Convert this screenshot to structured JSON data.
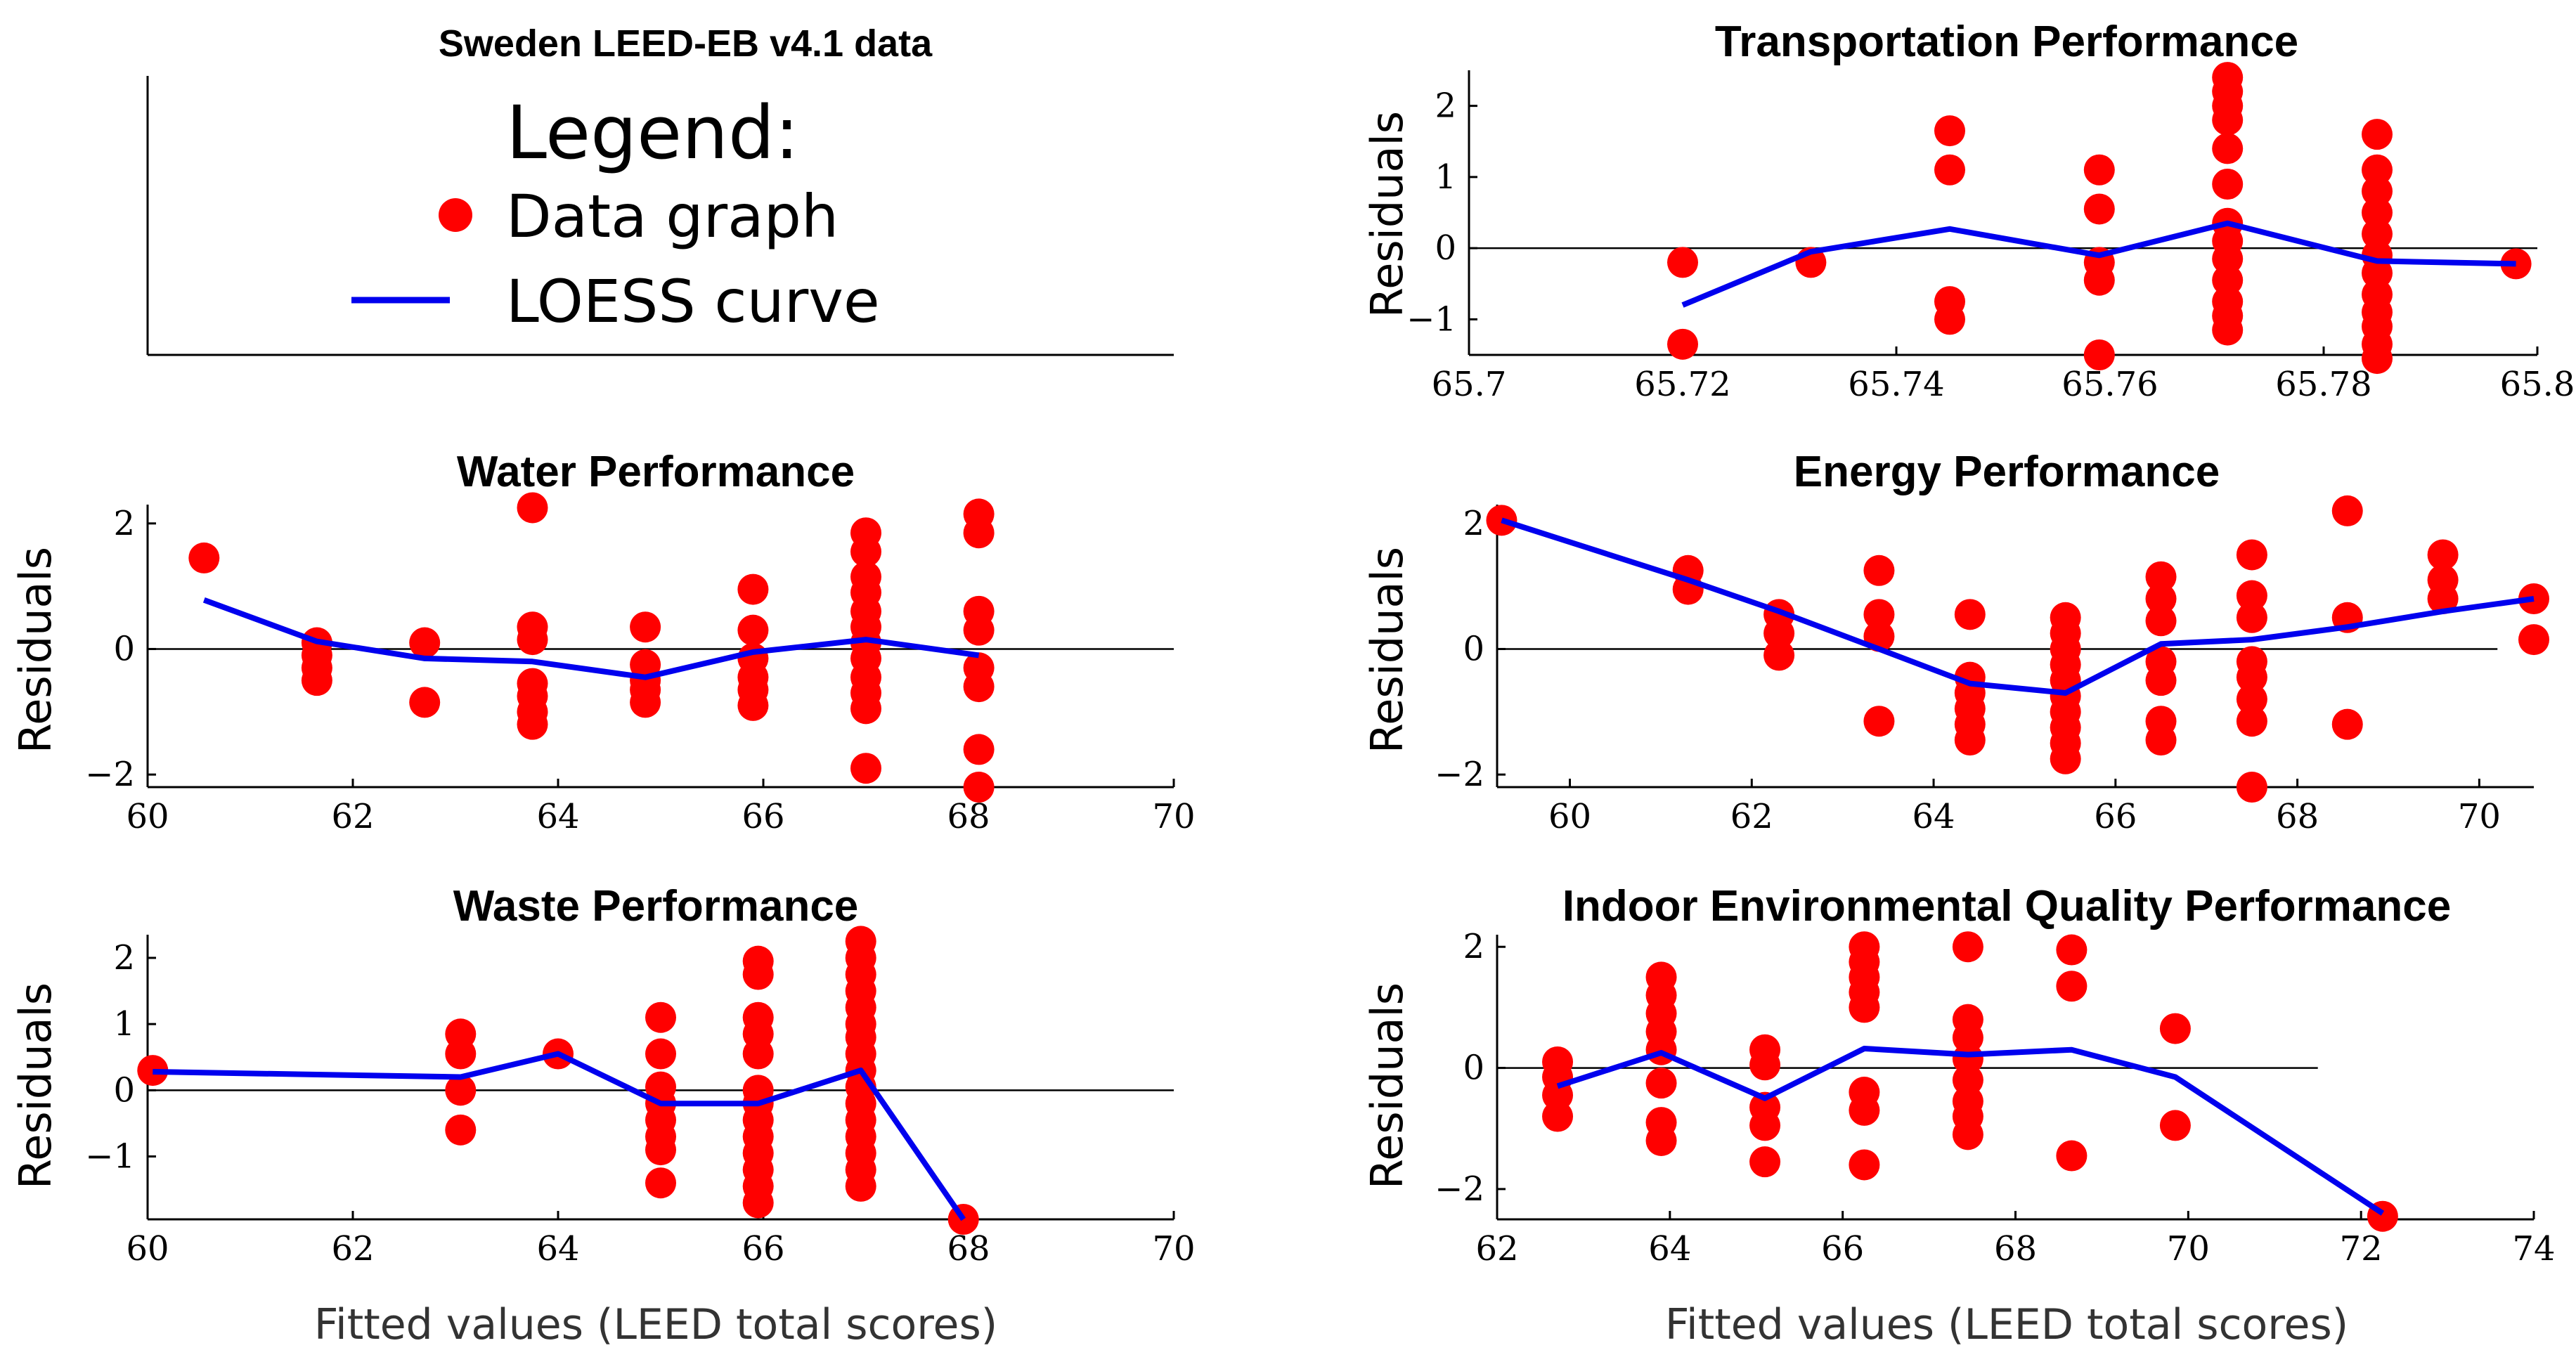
{
  "figure": {
    "x_axis_label": "Fitted values (LEED total scores)",
    "y_axis_label": "Residuals"
  },
  "legend": {
    "panel_title": "Sweden LEED-EB v4.1 data",
    "heading": "Legend:",
    "data_label": "Data graph",
    "curve_label": "LOESS curve"
  },
  "colors": {
    "points": "#ff0000",
    "curve": "#0000ee",
    "axis": "#000000",
    "zero_line": "#000000"
  },
  "chart_data": [
    {
      "id": "transport",
      "type": "scatter",
      "title": "Transportation Performance",
      "ylabel": "Residuals",
      "xlabel": "",
      "xlim": [
        65.7,
        65.8
      ],
      "ylim": [
        -1.5,
        2.5
      ],
      "xticks": [
        65.7,
        65.72,
        65.74,
        65.76,
        65.78,
        65.8
      ],
      "xtick_labels": [
        "65.7",
        "65.72",
        "65.74",
        "65.76",
        "65.78",
        "65.8"
      ],
      "yticks": [
        -1,
        0,
        1,
        2
      ],
      "ytick_labels": [
        "−1",
        "0",
        "1",
        "2"
      ],
      "zero_line_range": [
        65.7,
        65.8
      ],
      "points": [
        [
          65.72,
          -0.2
        ],
        [
          65.72,
          -1.35
        ],
        [
          65.732,
          -0.2
        ],
        [
          65.745,
          1.65
        ],
        [
          65.745,
          1.1
        ],
        [
          65.745,
          -0.75
        ],
        [
          65.745,
          -1.0
        ],
        [
          65.759,
          1.1
        ],
        [
          65.759,
          0.55
        ],
        [
          65.759,
          -0.2
        ],
        [
          65.759,
          -0.45
        ],
        [
          65.759,
          -1.5
        ],
        [
          65.771,
          2.4
        ],
        [
          65.771,
          2.2
        ],
        [
          65.771,
          2.0
        ],
        [
          65.771,
          1.8
        ],
        [
          65.771,
          1.4
        ],
        [
          65.771,
          0.9
        ],
        [
          65.771,
          0.35
        ],
        [
          65.771,
          0.1
        ],
        [
          65.771,
          -0.15
        ],
        [
          65.771,
          -0.45
        ],
        [
          65.771,
          -0.75
        ],
        [
          65.771,
          -0.95
        ],
        [
          65.771,
          -1.15
        ],
        [
          65.785,
          1.6
        ],
        [
          65.785,
          1.1
        ],
        [
          65.785,
          0.8
        ],
        [
          65.785,
          0.5
        ],
        [
          65.785,
          0.2
        ],
        [
          65.785,
          -0.1
        ],
        [
          65.785,
          -0.35
        ],
        [
          65.785,
          -0.65
        ],
        [
          65.785,
          -0.9
        ],
        [
          65.785,
          -1.1
        ],
        [
          65.785,
          -1.35
        ],
        [
          65.785,
          -1.55
        ],
        [
          65.798,
          -0.22
        ]
      ],
      "loess": [
        [
          65.72,
          -0.8
        ],
        [
          65.732,
          -0.05
        ],
        [
          65.745,
          0.27
        ],
        [
          65.759,
          -0.1
        ],
        [
          65.771,
          0.35
        ],
        [
          65.785,
          -0.18
        ],
        [
          65.798,
          -0.22
        ]
      ]
    },
    {
      "id": "water",
      "type": "scatter",
      "title": "Water Performance",
      "ylabel": "Residuals",
      "xlabel": "",
      "xlim": [
        60,
        70
      ],
      "ylim": [
        -2.2,
        2.3
      ],
      "xticks": [
        60,
        62,
        64,
        66,
        68,
        70
      ],
      "xtick_labels": [
        "60",
        "62",
        "64",
        "66",
        "68",
        "70"
      ],
      "yticks": [
        -2,
        0,
        2
      ],
      "ytick_labels": [
        "−2",
        "0",
        "2"
      ],
      "zero_line_range": [
        60,
        70
      ],
      "points": [
        [
          60.55,
          1.45
        ],
        [
          61.65,
          0.1
        ],
        [
          61.65,
          -0.1
        ],
        [
          61.65,
          -0.3
        ],
        [
          61.65,
          -0.5
        ],
        [
          62.7,
          0.1
        ],
        [
          62.7,
          -0.85
        ],
        [
          63.75,
          2.25
        ],
        [
          63.75,
          0.35
        ],
        [
          63.75,
          0.15
        ],
        [
          63.75,
          -0.55
        ],
        [
          63.75,
          -0.75
        ],
        [
          63.75,
          -1.0
        ],
        [
          63.75,
          -1.2
        ],
        [
          64.85,
          0.35
        ],
        [
          64.85,
          -0.25
        ],
        [
          64.85,
          -0.5
        ],
        [
          64.85,
          -0.65
        ],
        [
          64.85,
          -0.85
        ],
        [
          65.9,
          0.95
        ],
        [
          65.9,
          0.3
        ],
        [
          65.9,
          -0.15
        ],
        [
          65.9,
          -0.45
        ],
        [
          65.9,
          -0.65
        ],
        [
          65.9,
          -0.9
        ],
        [
          67.0,
          1.85
        ],
        [
          67.0,
          1.55
        ],
        [
          67.0,
          1.15
        ],
        [
          67.0,
          0.9
        ],
        [
          67.0,
          0.6
        ],
        [
          67.0,
          0.35
        ],
        [
          67.0,
          0.1
        ],
        [
          67.0,
          -0.15
        ],
        [
          67.0,
          -0.45
        ],
        [
          67.0,
          -0.7
        ],
        [
          67.0,
          -0.95
        ],
        [
          67.0,
          -1.9
        ],
        [
          68.1,
          2.15
        ],
        [
          68.1,
          1.85
        ],
        [
          68.1,
          0.6
        ],
        [
          68.1,
          0.3
        ],
        [
          68.1,
          -0.3
        ],
        [
          68.1,
          -0.6
        ],
        [
          68.1,
          -1.6
        ],
        [
          68.1,
          -2.2
        ]
      ],
      "loess": [
        [
          60.55,
          0.78
        ],
        [
          61.65,
          0.12
        ],
        [
          62.7,
          -0.15
        ],
        [
          63.75,
          -0.2
        ],
        [
          64.85,
          -0.45
        ],
        [
          65.9,
          -0.05
        ],
        [
          67.0,
          0.15
        ],
        [
          68.1,
          -0.1
        ]
      ]
    },
    {
      "id": "energy",
      "type": "scatter",
      "title": "Energy Performance",
      "ylabel": "Residuals",
      "xlabel": "",
      "xlim": [
        59.2,
        70.6
      ],
      "ylim": [
        -2.2,
        2.3
      ],
      "xticks": [
        60,
        62,
        64,
        66,
        68,
        70
      ],
      "xtick_labels": [
        "60",
        "62",
        "64",
        "66",
        "68",
        "70"
      ],
      "yticks": [
        -2,
        0,
        2
      ],
      "ytick_labels": [
        "−2",
        "0",
        "2"
      ],
      "zero_line_range": [
        59.2,
        70.2
      ],
      "points": [
        [
          59.25,
          2.05
        ],
        [
          61.3,
          1.25
        ],
        [
          61.3,
          0.95
        ],
        [
          62.3,
          0.55
        ],
        [
          62.3,
          0.25
        ],
        [
          62.3,
          -0.1
        ],
        [
          63.4,
          1.25
        ],
        [
          63.4,
          0.55
        ],
        [
          63.4,
          0.2
        ],
        [
          63.4,
          -1.15
        ],
        [
          64.4,
          0.55
        ],
        [
          64.4,
          -0.45
        ],
        [
          64.4,
          -0.7
        ],
        [
          64.4,
          -0.95
        ],
        [
          64.4,
          -1.2
        ],
        [
          64.4,
          -1.45
        ],
        [
          65.45,
          0.5
        ],
        [
          65.45,
          0.25
        ],
        [
          65.45,
          0.0
        ],
        [
          65.45,
          -0.25
        ],
        [
          65.45,
          -0.5
        ],
        [
          65.45,
          -0.75
        ],
        [
          65.45,
          -1.0
        ],
        [
          65.45,
          -1.25
        ],
        [
          65.45,
          -1.5
        ],
        [
          65.45,
          -1.75
        ],
        [
          66.5,
          1.15
        ],
        [
          66.5,
          0.8
        ],
        [
          66.5,
          0.45
        ],
        [
          66.5,
          -0.2
        ],
        [
          66.5,
          -0.5
        ],
        [
          66.5,
          -1.15
        ],
        [
          66.5,
          -1.45
        ],
        [
          67.5,
          1.5
        ],
        [
          67.5,
          0.85
        ],
        [
          67.5,
          0.5
        ],
        [
          67.5,
          -0.2
        ],
        [
          67.5,
          -0.45
        ],
        [
          67.5,
          -0.8
        ],
        [
          67.5,
          -1.15
        ],
        [
          67.5,
          -2.2
        ],
        [
          68.55,
          2.2
        ],
        [
          68.55,
          0.5
        ],
        [
          68.55,
          -1.2
        ],
        [
          69.6,
          1.5
        ],
        [
          69.6,
          1.1
        ],
        [
          69.6,
          0.8
        ],
        [
          70.6,
          0.8
        ],
        [
          70.6,
          0.15
        ]
      ],
      "loess": [
        [
          59.25,
          2.05
        ],
        [
          61.3,
          1.1
        ],
        [
          62.3,
          0.6
        ],
        [
          63.4,
          0.0
        ],
        [
          64.4,
          -0.55
        ],
        [
          65.45,
          -0.7
        ],
        [
          66.5,
          0.08
        ],
        [
          67.5,
          0.15
        ],
        [
          68.55,
          0.35
        ],
        [
          69.6,
          0.6
        ],
        [
          70.6,
          0.8
        ]
      ]
    },
    {
      "id": "waste",
      "type": "scatter",
      "title": "Waste Performance",
      "ylabel": "Residuals",
      "xlabel": "Fitted values (LEED total scores)",
      "xlim": [
        60,
        70
      ],
      "ylim": [
        -1.95,
        2.35
      ],
      "xticks": [
        60,
        62,
        64,
        66,
        68,
        70
      ],
      "xtick_labels": [
        "60",
        "62",
        "64",
        "66",
        "68",
        "70"
      ],
      "yticks": [
        -1,
        0,
        1,
        2
      ],
      "ytick_labels": [
        "−1",
        "0",
        "1",
        "2"
      ],
      "zero_line_range": [
        60,
        70
      ],
      "points": [
        [
          60.05,
          0.3
        ],
        [
          63.05,
          0.85
        ],
        [
          63.05,
          0.55
        ],
        [
          63.05,
          0.0
        ],
        [
          63.05,
          -0.6
        ],
        [
          64.0,
          0.55
        ],
        [
          65.0,
          1.1
        ],
        [
          65.0,
          0.55
        ],
        [
          65.0,
          0.05
        ],
        [
          65.0,
          -0.2
        ],
        [
          65.0,
          -0.45
        ],
        [
          65.0,
          -0.7
        ],
        [
          65.0,
          -0.9
        ],
        [
          65.0,
          -1.4
        ],
        [
          65.95,
          1.95
        ],
        [
          65.95,
          1.75
        ],
        [
          65.95,
          1.1
        ],
        [
          65.95,
          0.85
        ],
        [
          65.95,
          0.55
        ],
        [
          65.95,
          0.0
        ],
        [
          65.95,
          -0.2
        ],
        [
          65.95,
          -0.45
        ],
        [
          65.95,
          -0.7
        ],
        [
          65.95,
          -0.95
        ],
        [
          65.95,
          -1.2
        ],
        [
          65.95,
          -1.45
        ],
        [
          65.95,
          -1.7
        ],
        [
          66.95,
          2.25
        ],
        [
          66.95,
          2.0
        ],
        [
          66.95,
          1.75
        ],
        [
          66.95,
          1.5
        ],
        [
          66.95,
          1.25
        ],
        [
          66.95,
          1.0
        ],
        [
          66.95,
          0.8
        ],
        [
          66.95,
          0.55
        ],
        [
          66.95,
          0.3
        ],
        [
          66.95,
          0.05
        ],
        [
          66.95,
          -0.2
        ],
        [
          66.95,
          -0.45
        ],
        [
          66.95,
          -0.7
        ],
        [
          66.95,
          -0.95
        ],
        [
          66.95,
          -1.2
        ],
        [
          66.95,
          -1.45
        ],
        [
          67.95,
          -1.95
        ]
      ],
      "loess": [
        [
          60.05,
          0.28
        ],
        [
          63.05,
          0.2
        ],
        [
          64.0,
          0.55
        ],
        [
          65.0,
          -0.2
        ],
        [
          65.95,
          -0.2
        ],
        [
          66.95,
          0.3
        ],
        [
          67.95,
          -1.95
        ]
      ]
    },
    {
      "id": "ieq",
      "type": "scatter",
      "title": "Indoor Environmental Quality Performance",
      "ylabel": "Residuals",
      "xlabel": "Fitted values (LEED total scores)",
      "xlim": [
        62,
        74
      ],
      "ylim": [
        -2.5,
        2.2
      ],
      "xticks": [
        62,
        64,
        66,
        68,
        70,
        72,
        74
      ],
      "xtick_labels": [
        "62",
        "64",
        "66",
        "68",
        "70",
        "72",
        "74"
      ],
      "yticks": [
        -2,
        0,
        2
      ],
      "ytick_labels": [
        "−2",
        "0",
        "2"
      ],
      "zero_line_range": [
        62,
        71.5
      ],
      "points": [
        [
          62.7,
          0.1
        ],
        [
          62.7,
          -0.15
        ],
        [
          62.7,
          -0.45
        ],
        [
          62.7,
          -0.8
        ],
        [
          63.9,
          1.5
        ],
        [
          63.9,
          1.2
        ],
        [
          63.9,
          0.9
        ],
        [
          63.9,
          0.6
        ],
        [
          63.9,
          0.3
        ],
        [
          63.9,
          -0.25
        ],
        [
          63.9,
          -0.9
        ],
        [
          63.9,
          -1.2
        ],
        [
          65.1,
          0.3
        ],
        [
          65.1,
          0.05
        ],
        [
          65.1,
          -0.65
        ],
        [
          65.1,
          -0.95
        ],
        [
          65.1,
          -1.55
        ],
        [
          66.25,
          2.0
        ],
        [
          66.25,
          1.75
        ],
        [
          66.25,
          1.5
        ],
        [
          66.25,
          1.25
        ],
        [
          66.25,
          1.0
        ],
        [
          66.25,
          -0.4
        ],
        [
          66.25,
          -0.7
        ],
        [
          66.25,
          -1.6
        ],
        [
          67.45,
          2.0
        ],
        [
          67.45,
          0.8
        ],
        [
          67.45,
          0.5
        ],
        [
          67.45,
          0.15
        ],
        [
          67.45,
          -0.2
        ],
        [
          67.45,
          -0.55
        ],
        [
          67.45,
          -0.8
        ],
        [
          67.45,
          -1.1
        ],
        [
          68.65,
          1.95
        ],
        [
          68.65,
          1.35
        ],
        [
          68.65,
          -1.45
        ],
        [
          69.85,
          0.65
        ],
        [
          69.85,
          -0.95
        ],
        [
          72.25,
          -2.45
        ]
      ],
      "loess": [
        [
          62.7,
          -0.3
        ],
        [
          63.9,
          0.25
        ],
        [
          65.1,
          -0.5
        ],
        [
          66.25,
          0.32
        ],
        [
          67.45,
          0.22
        ],
        [
          68.65,
          0.3
        ],
        [
          69.85,
          -0.15
        ],
        [
          72.25,
          -2.4
        ]
      ]
    }
  ]
}
